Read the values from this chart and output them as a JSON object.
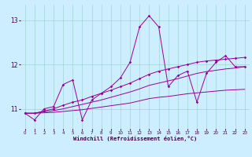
{
  "title": "",
  "xlabel": "Windchill (Refroidissement éolien,°C)",
  "background_color": "#cceeff",
  "grid_color": "#99cccc",
  "line_color": "#990099",
  "x_ticks": [
    0,
    1,
    2,
    3,
    4,
    5,
    6,
    7,
    8,
    9,
    10,
    11,
    12,
    13,
    14,
    15,
    16,
    17,
    18,
    19,
    20,
    21,
    22,
    23
  ],
  "y_ticks": [
    11,
    12,
    13
  ],
  "ylim": [
    10.55,
    13.35
  ],
  "xlim": [
    -0.5,
    23.5
  ],
  "series1_x": [
    0,
    1,
    2,
    3,
    4,
    5,
    6,
    7,
    8,
    9,
    10,
    11,
    12,
    13,
    14,
    15,
    16,
    17,
    18,
    19,
    20,
    21,
    22,
    23
  ],
  "series1_y": [
    10.9,
    10.75,
    11.0,
    11.05,
    11.55,
    11.65,
    10.75,
    11.2,
    11.35,
    11.5,
    11.7,
    12.05,
    12.85,
    13.1,
    12.85,
    11.5,
    11.75,
    11.85,
    11.15,
    11.8,
    12.05,
    12.2,
    11.95,
    11.95
  ],
  "series2_x": [
    0,
    1,
    2,
    3,
    4,
    5,
    6,
    7,
    8,
    9,
    10,
    11,
    12,
    13,
    14,
    15,
    16,
    17,
    18,
    19,
    20,
    21,
    22,
    23
  ],
  "series2_y": [
    10.9,
    10.9,
    10.95,
    11.0,
    11.08,
    11.15,
    11.2,
    11.28,
    11.35,
    11.42,
    11.5,
    11.58,
    11.68,
    11.78,
    11.85,
    11.9,
    11.95,
    12.0,
    12.05,
    12.08,
    12.1,
    12.12,
    12.14,
    12.16
  ],
  "series3_x": [
    0,
    1,
    2,
    3,
    4,
    5,
    6,
    7,
    8,
    9,
    10,
    11,
    12,
    13,
    14,
    15,
    16,
    17,
    18,
    19,
    20,
    21,
    22,
    23
  ],
  "series3_y": [
    10.9,
    10.9,
    10.93,
    10.96,
    11.0,
    11.05,
    11.1,
    11.15,
    11.2,
    11.26,
    11.32,
    11.38,
    11.45,
    11.53,
    11.58,
    11.63,
    11.68,
    11.74,
    11.8,
    11.84,
    11.87,
    11.9,
    11.92,
    11.95
  ],
  "series4_x": [
    0,
    1,
    2,
    3,
    4,
    5,
    6,
    7,
    8,
    9,
    10,
    11,
    12,
    13,
    14,
    15,
    16,
    17,
    18,
    19,
    20,
    21,
    22,
    23
  ],
  "series4_y": [
    10.9,
    10.9,
    10.91,
    10.92,
    10.94,
    10.96,
    10.98,
    11.01,
    11.04,
    11.07,
    11.1,
    11.13,
    11.18,
    11.23,
    11.26,
    11.28,
    11.31,
    11.34,
    11.36,
    11.38,
    11.4,
    11.42,
    11.43,
    11.44
  ]
}
